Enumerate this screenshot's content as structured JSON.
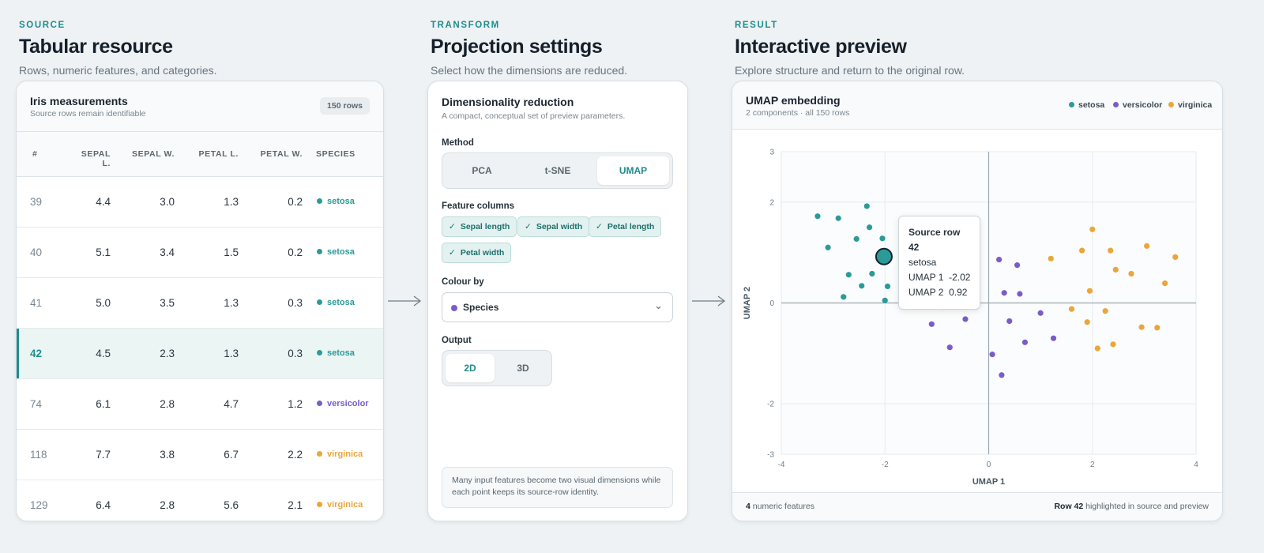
{
  "source": {
    "eyebrow": "SOURCE",
    "title": "Tabular resource",
    "subtitle": "Rows, numeric features, and categories.",
    "card_title": "Iris measurements",
    "card_subtitle": "Source rows remain identifiable",
    "row_count": "150 rows",
    "columns": [
      "#",
      "SEPAL L.",
      "SEPAL W.",
      "PETAL L.",
      "PETAL W.",
      "SPECIES"
    ],
    "rows": [
      {
        "id": "39",
        "sl": "4.4",
        "sw": "3.0",
        "pl": "1.3",
        "pw": "0.2",
        "species": "setosa"
      },
      {
        "id": "40",
        "sl": "5.1",
        "sw": "3.4",
        "pl": "1.5",
        "pw": "0.2",
        "species": "setosa"
      },
      {
        "id": "41",
        "sl": "5.0",
        "sw": "3.5",
        "pl": "1.3",
        "pw": "0.3",
        "species": "setosa"
      },
      {
        "id": "42",
        "sl": "4.5",
        "sw": "2.3",
        "pl": "1.3",
        "pw": "0.3",
        "species": "setosa"
      },
      {
        "id": "74",
        "sl": "6.1",
        "sw": "2.8",
        "pl": "4.7",
        "pw": "1.2",
        "species": "versicolor"
      },
      {
        "id": "118",
        "sl": "7.7",
        "sw": "3.8",
        "pl": "6.7",
        "pw": "2.2",
        "species": "virginica"
      },
      {
        "id": "129",
        "sl": "6.4",
        "sw": "2.8",
        "pl": "5.6",
        "pw": "2.1",
        "species": "virginica"
      }
    ],
    "highlighted_row": "42"
  },
  "transform": {
    "eyebrow": "TRANSFORM",
    "title": "Projection settings",
    "subtitle": "Select how the dimensions are reduced.",
    "card_title": "Dimensionality reduction",
    "card_subtitle": "A compact, conceptual set of preview parameters.",
    "method_label": "Method",
    "methods": [
      "PCA",
      "t-SNE",
      "UMAP"
    ],
    "method_selected": "UMAP",
    "features_label": "Feature columns",
    "features": [
      "Sepal length",
      "Sepal width",
      "Petal length",
      "Petal width"
    ],
    "check_glyph": "✓",
    "colour_label": "Colour by",
    "colour_value": "Species",
    "chevron_glyph": "⌄",
    "output_label": "Output",
    "outputs": [
      "2D",
      "3D"
    ],
    "output_selected": "2D",
    "note": "Many input features become two visual dimensions while each point keeps its source-row identity."
  },
  "result": {
    "eyebrow": "RESULT",
    "title": "Interactive preview",
    "subtitle": "Explore structure and return to the original row.",
    "card_title": "UMAP embedding",
    "card_subtitle": "2 components · all 150 rows",
    "legend": [
      "setosa",
      "versicolor",
      "virginica"
    ],
    "tooltip": {
      "title": "Source row 42",
      "species": "setosa",
      "umap1": "UMAP 1  -2.02",
      "umap2": "UMAP 2  0.92"
    },
    "footer_left_strong": "4",
    "footer_left_rest": " numeric features",
    "footer_right_strong": "Row 42",
    "footer_right_rest": " highlighted in source and preview"
  },
  "colors": {
    "accent": "#1f8c8c",
    "setosa": "#2a9b98",
    "versicolor": "#7a5cc8",
    "virginica": "#eaa63a"
  },
  "chart_data": {
    "type": "scatter",
    "xlabel": "UMAP 1",
    "ylabel": "UMAP 2",
    "xlim": [
      -4,
      4
    ],
    "ylim": [
      -3,
      3
    ],
    "xticks": [
      -4,
      -2,
      0,
      2,
      4
    ],
    "yticks": [
      -3,
      -2,
      0,
      2,
      3
    ],
    "grid": true,
    "legend_position": "top-right",
    "series": [
      {
        "name": "setosa",
        "points": [
          [
            -3.3,
            1.72
          ],
          [
            -2.9,
            1.68
          ],
          [
            -2.35,
            1.92
          ],
          [
            -3.1,
            1.1
          ],
          [
            -2.55,
            1.27
          ],
          [
            -2.3,
            1.5
          ],
          [
            -2.05,
            1.28
          ],
          [
            -2.7,
            0.56
          ],
          [
            -2.25,
            0.58
          ],
          [
            -2.45,
            0.34
          ],
          [
            -1.95,
            0.33
          ],
          [
            -2.8,
            0.12
          ],
          [
            -2.0,
            0.05
          ]
        ]
      },
      {
        "name": "versicolor",
        "points": [
          [
            -0.3,
            0.22
          ],
          [
            -0.9,
            -0.08
          ],
          [
            -1.1,
            -0.42
          ],
          [
            -0.45,
            -0.32
          ],
          [
            -0.75,
            -0.88
          ],
          [
            0.2,
            0.86
          ],
          [
            0.55,
            0.75
          ],
          [
            0.3,
            0.2
          ],
          [
            0.6,
            0.18
          ],
          [
            0.4,
            -0.36
          ],
          [
            1.0,
            -0.2
          ],
          [
            0.7,
            -0.78
          ],
          [
            1.25,
            -0.7
          ],
          [
            0.07,
            -1.02
          ],
          [
            0.25,
            -1.43
          ]
        ]
      },
      {
        "name": "virginica",
        "points": [
          [
            2.0,
            1.46
          ],
          [
            1.8,
            1.04
          ],
          [
            2.35,
            1.04
          ],
          [
            3.05,
            1.13
          ],
          [
            3.6,
            0.91
          ],
          [
            1.2,
            0.88
          ],
          [
            2.45,
            0.66
          ],
          [
            2.75,
            0.58
          ],
          [
            3.4,
            0.39
          ],
          [
            1.95,
            0.24
          ],
          [
            1.6,
            -0.12
          ],
          [
            2.25,
            -0.16
          ],
          [
            1.9,
            -0.38
          ],
          [
            2.95,
            -0.48
          ],
          [
            3.25,
            -0.49
          ],
          [
            2.1,
            -0.9
          ],
          [
            2.4,
            -0.82
          ]
        ]
      }
    ],
    "highlighted": {
      "series": "setosa",
      "x": -2.02,
      "y": 0.92
    }
  }
}
